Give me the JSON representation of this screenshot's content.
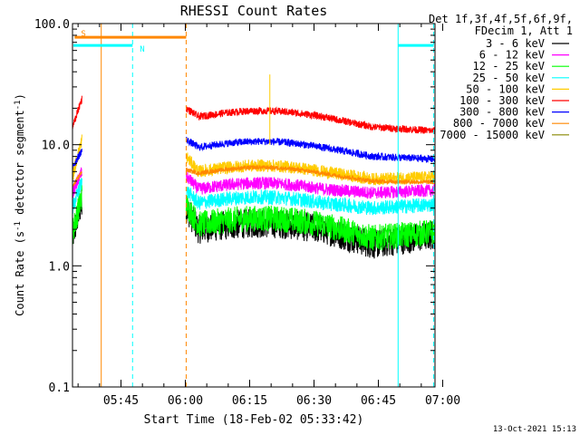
{
  "chart_data": {
    "type": "line",
    "title": "RHESSI Count Rates",
    "xlabel": "Start Time (18-Feb-02 05:33:42)",
    "ylabel_main": "Count Rate (s",
    "ylabel_sup1": "-1",
    "ylabel_mid": " detector segment",
    "ylabel_sup2": "-1",
    "ylabel_end": ")",
    "yscale": "log",
    "ylim": [
      0.1,
      100.0
    ],
    "xlim_minutes": [
      0,
      84.5
    ],
    "yticks": [
      {
        "value": 0.1,
        "label": "0.1"
      },
      {
        "value": 1.0,
        "label": "1.0"
      },
      {
        "value": 10.0,
        "label": "10.0"
      },
      {
        "value": 100.0,
        "label": "100.0"
      }
    ],
    "xticks": [
      {
        "minutes": 11.3,
        "label": "05:45"
      },
      {
        "minutes": 26.3,
        "label": "06:00"
      },
      {
        "minutes": 41.3,
        "label": "06:15"
      },
      {
        "minutes": 56.3,
        "label": "06:30"
      },
      {
        "minutes": 71.3,
        "label": "06:45"
      },
      {
        "minutes": 86.3,
        "label": "07:00"
      }
    ],
    "legend": {
      "placement": "right",
      "header1": "Det 1f,3f,4f,5f,6f,9f,",
      "header2": "FDecim 1, Att 1"
    },
    "series": [
      {
        "name": "3 - 6 keV",
        "color": "#000000",
        "pre": [
          1.7,
          3.5
        ],
        "flare_start": 3.0,
        "flare_mid": 2.0,
        "dip": 1.5,
        "end": 1.8,
        "noise": 0.28
      },
      {
        "name": "6 - 12 keV",
        "color": "#ff00ff",
        "pre": [
          4.0,
          6.0
        ],
        "flare_start": 5.5,
        "flare_mid": 4.3,
        "dip": 4.0,
        "end": 4.2,
        "noise": 0.12
      },
      {
        "name": "12 - 25 keV",
        "color": "#00ff00",
        "pre": [
          1.9,
          3.8
        ],
        "flare_start": 3.2,
        "flare_mid": 2.2,
        "dip": 1.7,
        "end": 1.9,
        "noise": 0.25
      },
      {
        "name": "25 - 50 keV",
        "color": "#00ffff",
        "pre": [
          3.0,
          5.0
        ],
        "flare_start": 4.2,
        "flare_mid": 3.3,
        "dip": 3.0,
        "end": 3.2,
        "noise": 0.14
      },
      {
        "name": "50 - 100 keV",
        "color": "#ffcc00",
        "pre": [
          5.5,
          11.0
        ],
        "flare_start": 8.0,
        "flare_mid": 6.0,
        "dip": 5.2,
        "end": 5.4,
        "noise": 0.12
      },
      {
        "name": "100 - 300 keV",
        "color": "#ff0000",
        "pre": [
          14.0,
          24.0
        ],
        "flare_start": 20.0,
        "flare_mid": 17.0,
        "dip": 14.0,
        "end": 13.0,
        "noise": 0.07
      },
      {
        "name": "300 - 800 keV",
        "color": "#0000ff",
        "pre": [
          6.5,
          9.0
        ],
        "flare_start": 11.0,
        "flare_mid": 9.5,
        "dip": 8.0,
        "end": 7.6,
        "noise": 0.07
      },
      {
        "name": "800 - 7000 keV",
        "color": "#ff8800",
        "pre": [
          4.5,
          6.0
        ],
        "flare_start": 6.2,
        "flare_mid": 5.8,
        "dip": 5.0,
        "end": 4.9,
        "noise": 0.04
      },
      {
        "name": "7000 - 15000 keV",
        "color": "#888800",
        "pre": [
          0,
          0
        ],
        "flare_start": 0,
        "flare_mid": 0,
        "dip": 0,
        "end": 0,
        "noise": 0
      }
    ],
    "data_gap_minutes": [
      2.2,
      26.5
    ],
    "vertical_markers": [
      {
        "minutes": 6.7,
        "color": "#ff8800",
        "style": "solid"
      },
      {
        "minutes": 26.5,
        "color": "#ff8800",
        "style": "dashed"
      },
      {
        "minutes": 14.0,
        "color": "#00ffff",
        "style": "dashed"
      },
      {
        "minutes": 75.9,
        "color": "#00ffff",
        "style": "solid"
      },
      {
        "minutes": 84.2,
        "color": "#00ffff",
        "style": "dashed"
      }
    ],
    "state_bars": [
      {
        "label": "S",
        "color": "#ff8800",
        "from_minutes": 0.5,
        "to_minutes": 26.5,
        "value": 77
      },
      {
        "label": "N",
        "color": "#00ffff",
        "from_minutes": 0.2,
        "to_minutes": 14.0,
        "value": 66
      },
      {
        "label": "",
        "color": "#00ffff",
        "from_minutes": 75.9,
        "to_minutes": 84.2,
        "value": 66
      }
    ],
    "spike": {
      "minutes": 46.0,
      "value_low": 10.0,
      "value_high": 38.0,
      "color": "#ffcc00"
    }
  },
  "footer_date": "13-Oct-2021 15:13"
}
